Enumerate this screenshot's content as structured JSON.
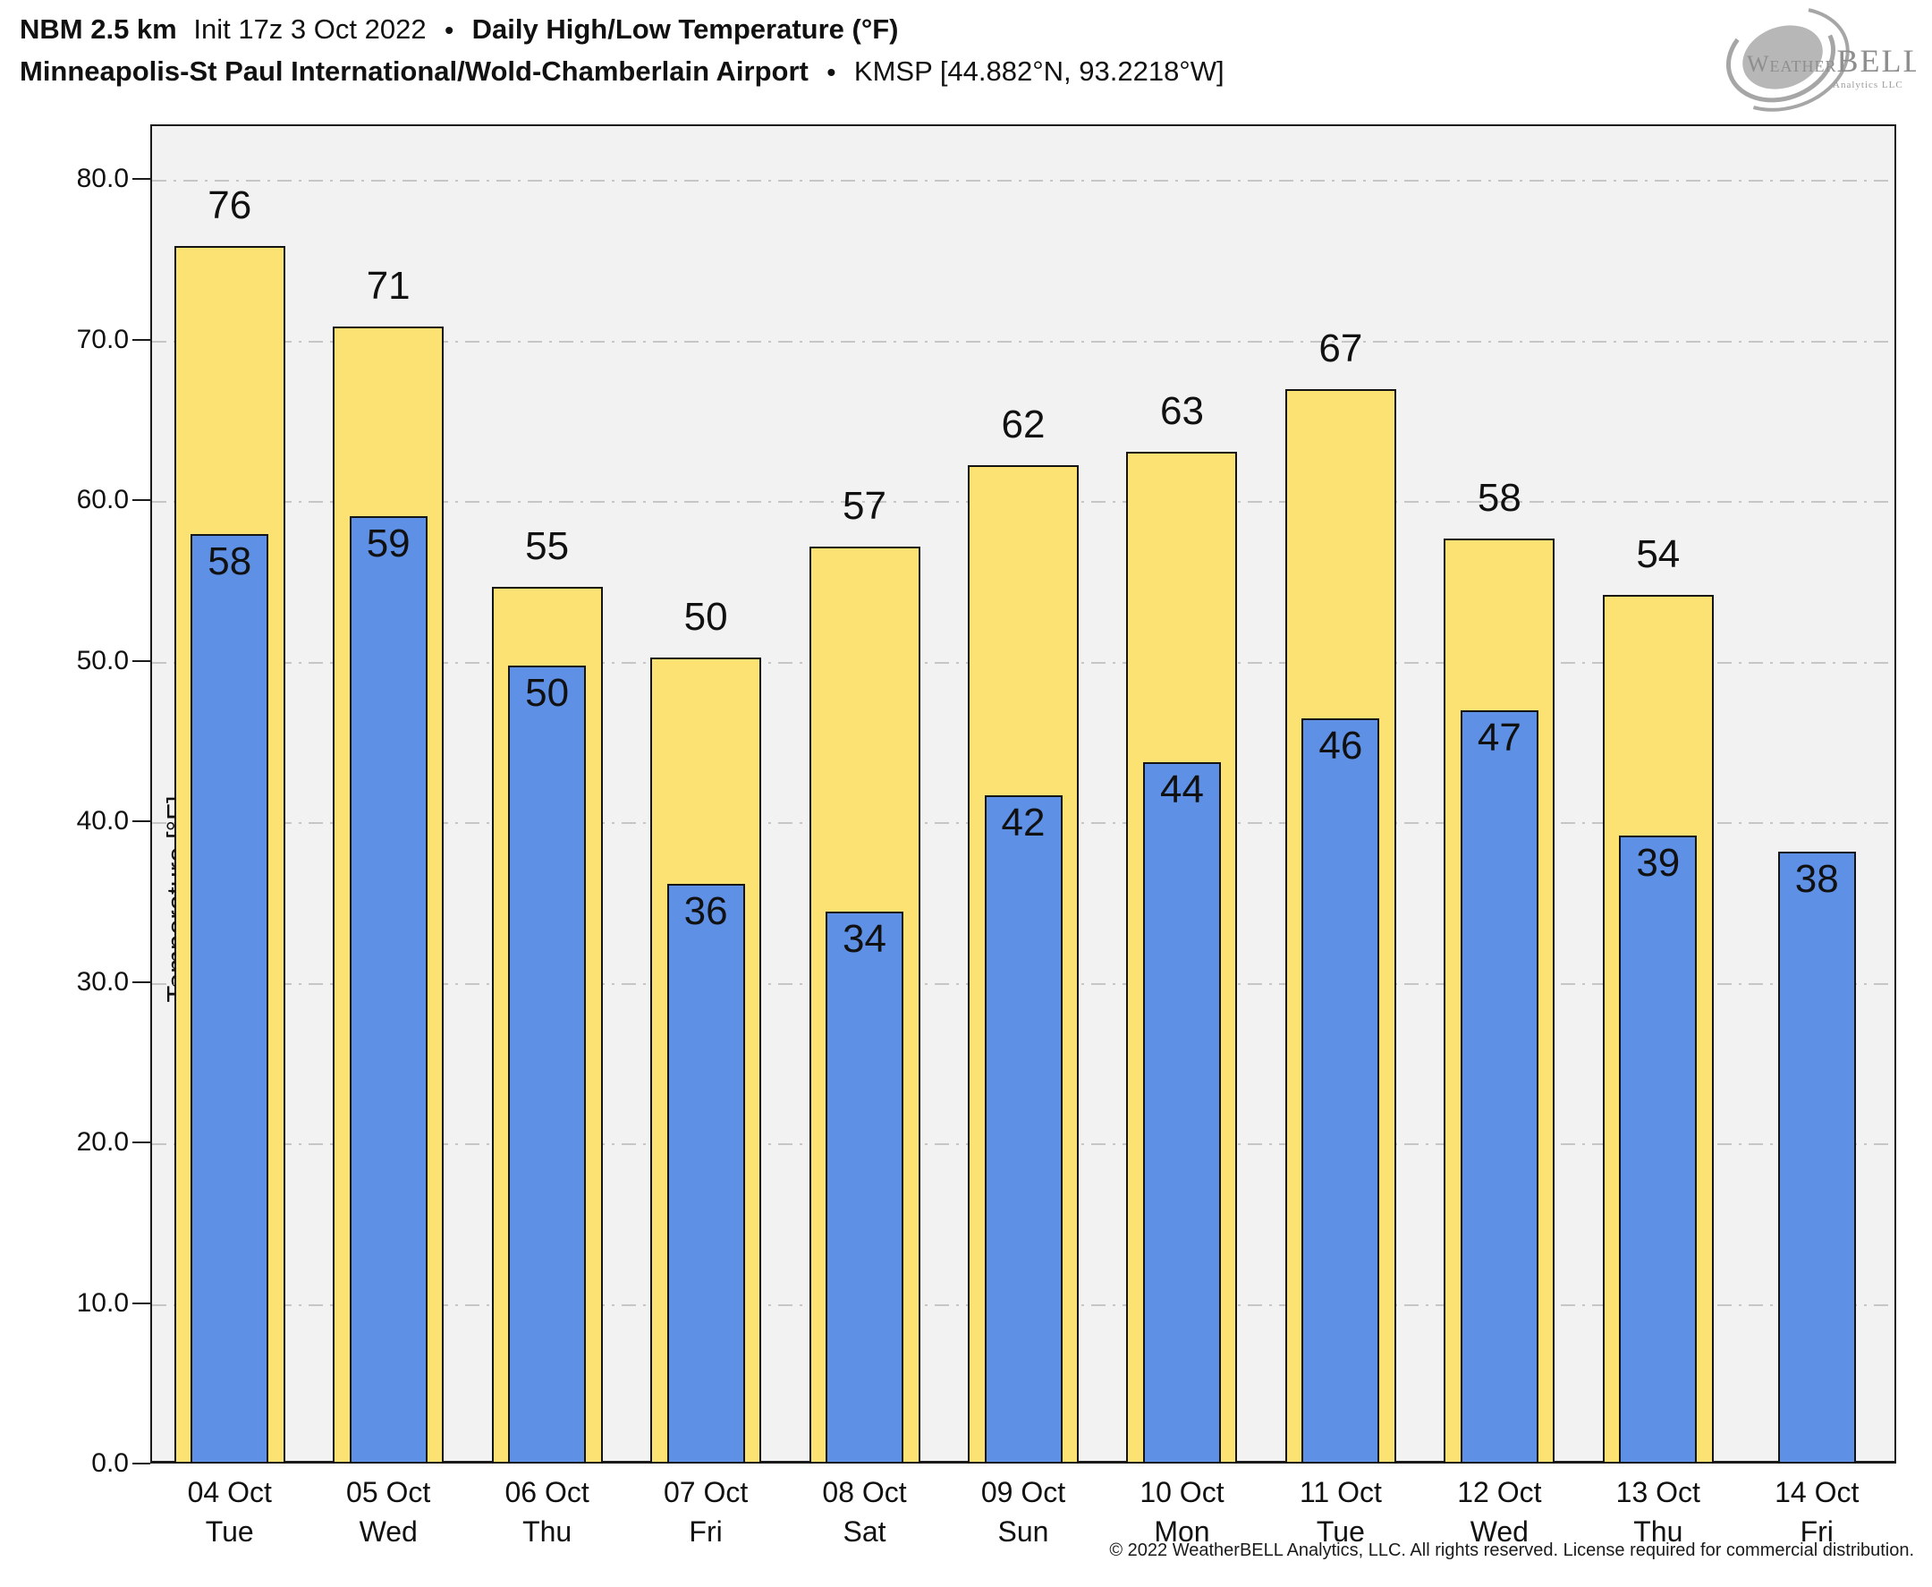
{
  "header": {
    "model": "NBM 2.5 km",
    "init": "Init 17z 3 Oct 2022",
    "bullet": "•",
    "product": "Daily High/Low Temperature (°F)",
    "station": "Minneapolis-St Paul International/Wold-Chamberlain Airport",
    "station_id": "KMSP [44.882°N, 93.2218°W]"
  },
  "logo": {
    "name": "WeatherBELL swirl logo",
    "word_weather": "Weather",
    "word_bell": "BELL",
    "subtext": "Analytics LLC"
  },
  "axes": {
    "y_label": "Temperature [°F]",
    "y_tick_labels": [
      "0.0",
      "10.0",
      "20.0",
      "30.0",
      "40.0",
      "50.0",
      "60.0",
      "70.0",
      "80.0"
    ]
  },
  "chart_data": {
    "type": "bar",
    "title": "NBM 2.5 km Init 17z 3 Oct 2022 • Daily High/Low Temperature (°F)",
    "subtitle": "Minneapolis-St Paul International/Wold-Chamberlain Airport • KMSP [44.882°N, 93.2218°W]",
    "xlabel": "",
    "ylabel": "Temperature [°F]",
    "ylim": [
      0,
      83.4
    ],
    "yticks": [
      0,
      10,
      20,
      30,
      40,
      50,
      60,
      70,
      80
    ],
    "grid": true,
    "legend_position": "none",
    "bar_layout": {
      "overlayed": true,
      "high_width_frac": 0.7,
      "low_width_frac": 0.49
    },
    "categories": [
      "04 Oct",
      "05 Oct",
      "06 Oct",
      "07 Oct",
      "08 Oct",
      "09 Oct",
      "10 Oct",
      "11 Oct",
      "12 Oct",
      "13 Oct",
      "14 Oct"
    ],
    "category_days": [
      "Tue",
      "Wed",
      "Thu",
      "Fri",
      "Sat",
      "Sun",
      "Mon",
      "Tue",
      "Wed",
      "Thu",
      "Fri"
    ],
    "series": [
      {
        "name": "Daily High",
        "color": "#fbe273",
        "values": [
          75.8,
          70.8,
          54.6,
          50.2,
          57.1,
          62.2,
          63.0,
          66.9,
          57.6,
          54.1,
          null
        ],
        "point_labels": [
          "76",
          "71",
          "55",
          "50",
          "57",
          "62",
          "63",
          "67",
          "58",
          "54",
          ""
        ]
      },
      {
        "name": "Daily Low",
        "color": "#5e90e6",
        "values": [
          57.9,
          59.0,
          49.7,
          36.1,
          34.4,
          41.6,
          43.7,
          46.4,
          46.9,
          39.1,
          38.1
        ],
        "point_labels": [
          "58",
          "59",
          "50",
          "36",
          "34",
          "42",
          "44",
          "46",
          "47",
          "39",
          "38"
        ]
      }
    ]
  },
  "footer": {
    "copyright": "© 2022 WeatherBELL Analytics, LLC. All rights reserved. License required for commercial distribution."
  },
  "colors": {
    "high_bar": "#fbe273",
    "low_bar": "#5e90e6",
    "bar_border": "#141414",
    "plot_bg": "#f2f2f2",
    "grid": "#c6c6c6",
    "axis": "#1b1b1b",
    "text": "#111111",
    "logo_gray": "#9b9b9b",
    "page_bg": "#ffffff"
  }
}
